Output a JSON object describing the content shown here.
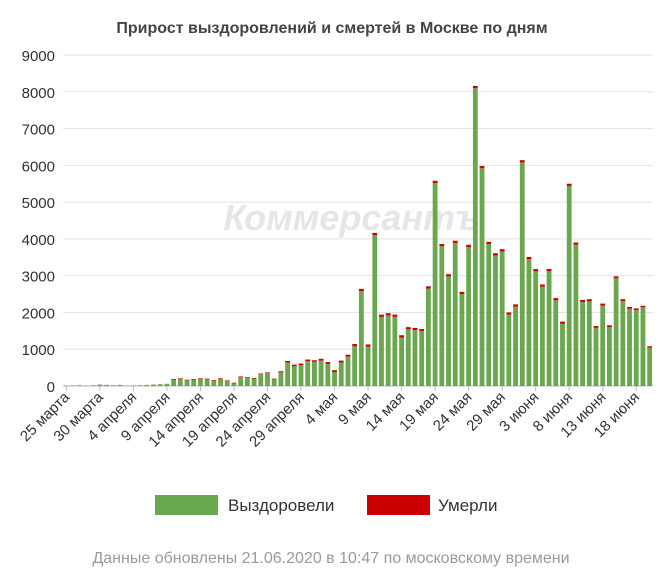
{
  "chart_data": {
    "type": "bar",
    "title": "Прирост выздоровлений и смертей в Москве по дням",
    "watermark": "Коммерсантъ",
    "footer": "Данные обновлены 21.06.2020 в 10:47 по московскому времени",
    "ylim": [
      0,
      9000
    ],
    "yticks": [
      0,
      1000,
      2000,
      3000,
      4000,
      5000,
      6000,
      7000,
      8000,
      9000
    ],
    "grid": true,
    "legend_position": "bottom",
    "xtick_labels": [
      {
        "index": 0,
        "label": "25 марта"
      },
      {
        "index": 5,
        "label": "30 марта"
      },
      {
        "index": 10,
        "label": "4 апреля"
      },
      {
        "index": 15,
        "label": "9 апреля"
      },
      {
        "index": 20,
        "label": "14 апреля"
      },
      {
        "index": 25,
        "label": "19 апреля"
      },
      {
        "index": 30,
        "label": "24 апреля"
      },
      {
        "index": 35,
        "label": "29 апреля"
      },
      {
        "index": 40,
        "label": "4 мая"
      },
      {
        "index": 45,
        "label": "9 мая"
      },
      {
        "index": 50,
        "label": "14 мая"
      },
      {
        "index": 55,
        "label": "19 мая"
      },
      {
        "index": 60,
        "label": "24 мая"
      },
      {
        "index": 65,
        "label": "29 мая"
      },
      {
        "index": 70,
        "label": "3 июня"
      },
      {
        "index": 75,
        "label": "8 июня"
      },
      {
        "index": 80,
        "label": "13 июня"
      },
      {
        "index": 85,
        "label": "18 июня"
      }
    ],
    "series": [
      {
        "name": "Выздоровели",
        "color": "#6aa84f",
        "values": [
          10,
          10,
          20,
          10,
          20,
          40,
          30,
          20,
          30,
          10,
          10,
          20,
          30,
          40,
          50,
          60,
          180,
          200,
          160,
          180,
          200,
          190,
          150,
          200,
          140,
          80,
          250,
          230,
          210,
          320,
          350,
          180,
          370,
          640,
          540,
          570,
          680,
          660,
          690,
          600,
          380,
          640,
          800,
          1080,
          2580,
          1070,
          4100,
          1880,
          1920,
          1880,
          1320,
          1540,
          1520,
          1490,
          2650,
          5520,
          3800,
          2980,
          3890,
          2500,
          3780,
          8100,
          5920,
          3860,
          3550,
          3660,
          1940,
          2160,
          6080,
          3450,
          3120,
          2700,
          3120,
          2330,
          1690,
          5440,
          3840,
          2280,
          2300,
          1580,
          2190,
          1600,
          2930,
          2310,
          2100,
          2060,
          2140,
          1040
        ]
      },
      {
        "name": "Умерли",
        "color": "#cc0000",
        "values": [
          0,
          0,
          0,
          0,
          0,
          0,
          0,
          0,
          0,
          0,
          0,
          0,
          0,
          0,
          0,
          0,
          10,
          10,
          10,
          10,
          10,
          10,
          10,
          10,
          10,
          10,
          10,
          10,
          10,
          20,
          20,
          20,
          30,
          40,
          40,
          40,
          40,
          40,
          50,
          50,
          50,
          50,
          50,
          60,
          60,
          60,
          60,
          60,
          60,
          60,
          60,
          60,
          60,
          60,
          60,
          60,
          60,
          60,
          60,
          60,
          60,
          60,
          60,
          60,
          60,
          60,
          60,
          60,
          60,
          60,
          60,
          60,
          60,
          60,
          60,
          60,
          60,
          60,
          60,
          50,
          50,
          50,
          50,
          50,
          50,
          50,
          40,
          40
        ]
      }
    ]
  }
}
